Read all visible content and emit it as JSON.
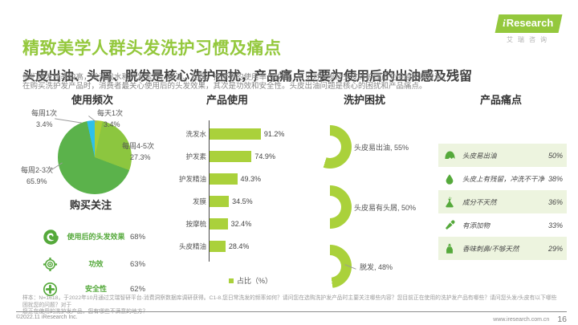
{
  "header": {
    "title": "精致美学人群头发洗护习惯及痛点",
    "subtitle": "头皮出油、头屑、脱发是核心洗护困扰，产品痛点主要为使用后的出油感及残留",
    "desc_line1": "他们洗发频率较高，除洗发水和护发素外，精油、发膜、按摩梳的使用率也较高，可见对头发及头皮的护理正变得越来越普遍。",
    "desc_line2": "在购买洗护发产品时，消费者最关心使用后的头发效果，其次是功效和安全性。头皮出油问题是核心的困扰和产品痛点。"
  },
  "logo": {
    "i": "i",
    "rest": "Research",
    "sub": "艾瑞咨询"
  },
  "colors": {
    "brand_green": "#94c83d",
    "bar_green": "#aad13b",
    "icon_green": "#55a93b",
    "pie_green": "#5bb24b",
    "pie_light_green": "#8cc63f",
    "pie_yellow_green": "#a9ce37",
    "pie_cyan": "#2ec0ea",
    "pain_row_bg": "#edf4df"
  },
  "sections": {
    "usage_freq_title": "使用频次",
    "purchase_title": "购买关注",
    "product_use_title": "产品使用",
    "trouble_title": "洗护困扰",
    "pain_title": "产品痛点"
  },
  "purchase_focus": [
    {
      "icon": "hair-curl-icon",
      "label": "使用后的头发效果",
      "value": "68%"
    },
    {
      "icon": "target-icon",
      "label": "功效",
      "value": "63%"
    },
    {
      "icon": "plus-circle-icon",
      "label": "安全性",
      "value": "62%"
    }
  ],
  "chart_data": [
    {
      "type": "pie",
      "title": "使用频次",
      "slices": [
        {
          "label": "每天1次",
          "pct_label": "3.4%",
          "value": 3.4,
          "color": "#a9ce37"
        },
        {
          "label": "每周4-5次",
          "pct_label": "27.3%",
          "value": 27.3,
          "color": "#8cc63f"
        },
        {
          "label": "每周2-3次",
          "pct_label": "65.9%",
          "value": 65.9,
          "color": "#5bb24b"
        },
        {
          "label": "每周1次",
          "pct_label": "3.4%",
          "value": 3.4,
          "color": "#2ec0ea"
        }
      ]
    },
    {
      "type": "bar",
      "title": "产品使用",
      "categories": [
        "洗发水",
        "护发素",
        "护发精油",
        "发膜",
        "按摩梳",
        "头皮精油"
      ],
      "values": [
        91.2,
        74.9,
        49.3,
        34.5,
        32.4,
        28.4
      ],
      "value_labels": [
        "91.2%",
        "74.9%",
        "49.3%",
        "34.5%",
        "32.4%",
        "28.4%"
      ],
      "legend": "占比（%）",
      "xlim": [
        0,
        100
      ]
    },
    {
      "type": "donut",
      "title": "洗护困扰",
      "items": [
        {
          "label": "头皮易出油, 55%",
          "value": 55
        },
        {
          "label": "头皮易有头屑, 50%",
          "value": 50
        },
        {
          "label": "脱发, 48%",
          "value": 48
        }
      ]
    },
    {
      "type": "table",
      "title": "产品痛点",
      "rows": [
        {
          "icon": "scalp-oil-icon",
          "label": "头皮易出油",
          "value": "50%"
        },
        {
          "icon": "water-drop-icon",
          "label": "头皮上有残留，冲洗不干净",
          "value": "38%"
        },
        {
          "icon": "flask-icon",
          "label": "成分不天然",
          "value": "36%"
        },
        {
          "icon": "dropper-icon",
          "label": "有添加物",
          "value": "33%"
        },
        {
          "icon": "perfume-icon",
          "label": "香味刺鼻/不够天然",
          "value": "29%"
        }
      ]
    }
  ],
  "footer": {
    "note_line1": "样本：N=1618，于2022年10月通过艾瑞智研平台-消费洞察数据库调研获得。C1-8.您日常洗发的频率如何？请问您在选购洗护发产品时主要关注哪些内容？您目前正在使用的洗护发产品有哪些？请问您头发/头皮有以下哪些困扰您的问题？对于",
    "note_line2": "您正在使用的洗护发产品，您有哪些不满意的地方？",
    "copyright": "©2022.11 iResearch Inc.",
    "site": "www.iresearch.com.cn",
    "page": "16"
  }
}
